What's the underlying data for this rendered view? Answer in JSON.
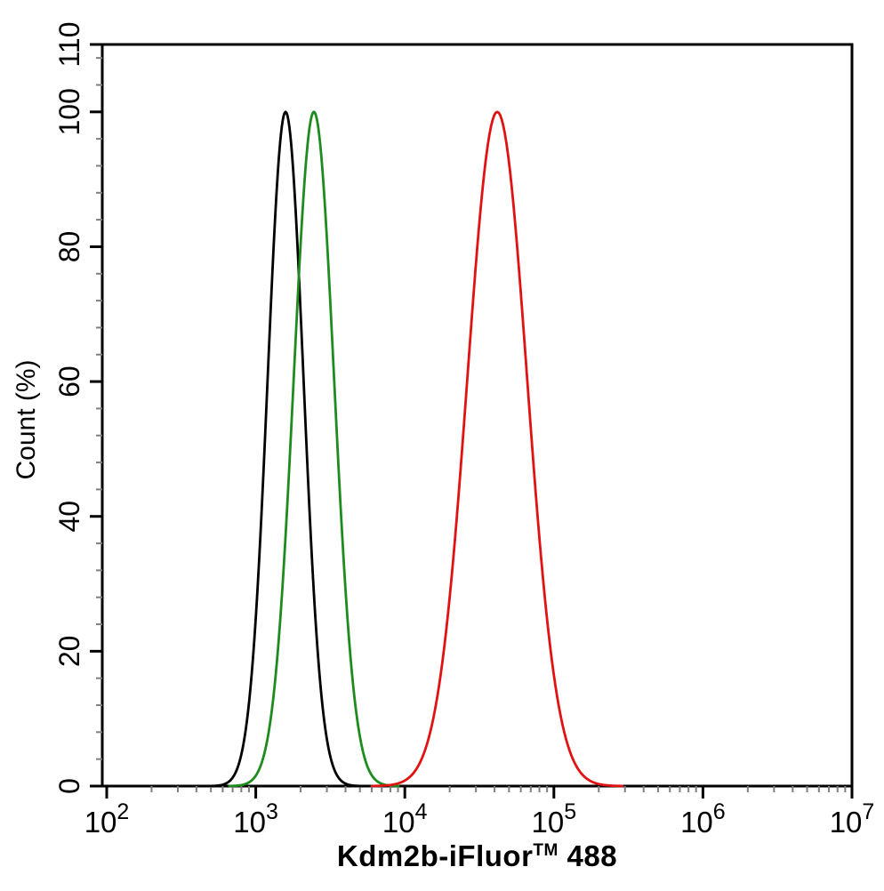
{
  "chart_data": {
    "type": "line",
    "subtype": "flow-cytometry-overlay-histogram",
    "title": "",
    "xlabel": "Kdm2b-iFluor™ 488",
    "xlabel_parts": {
      "pre": "Kdm2b-iFluor",
      "sup": "TM",
      "post": " 488"
    },
    "ylabel": "Count (%)",
    "x_scale": "log10",
    "x_range": [
      100,
      10000000
    ],
    "x_major_tick_exponents": [
      2,
      3,
      4,
      5,
      6,
      7
    ],
    "x_tick_label_base": "10",
    "x_minor_ticks_per_decade": [
      2,
      3,
      4,
      5,
      6,
      7,
      8,
      9
    ],
    "y_range": [
      0,
      110
    ],
    "y_major_ticks": [
      0,
      20,
      40,
      60,
      80,
      100,
      110
    ],
    "y_minor_tick_step": 4,
    "grid": false,
    "legend": "none",
    "series": [
      {
        "name": "black-curve",
        "color": "#000000",
        "peak_x": 1600,
        "peak_y": 100,
        "center_log10": 3.2,
        "sigma_log10": 0.12
      },
      {
        "name": "green-curve",
        "color": "#1e8b1e",
        "peak_x": 2450,
        "peak_y": 100,
        "center_log10": 3.39,
        "sigma_log10": 0.135
      },
      {
        "name": "red-curve",
        "color": "#e01212",
        "peak_x": 42000,
        "peak_y": 100,
        "center_log10": 4.62,
        "sigma_log10": 0.2
      }
    ],
    "axis_color": "#000000",
    "minor_tick_color": "#7f7f7f",
    "background_color": "#ffffff"
  }
}
